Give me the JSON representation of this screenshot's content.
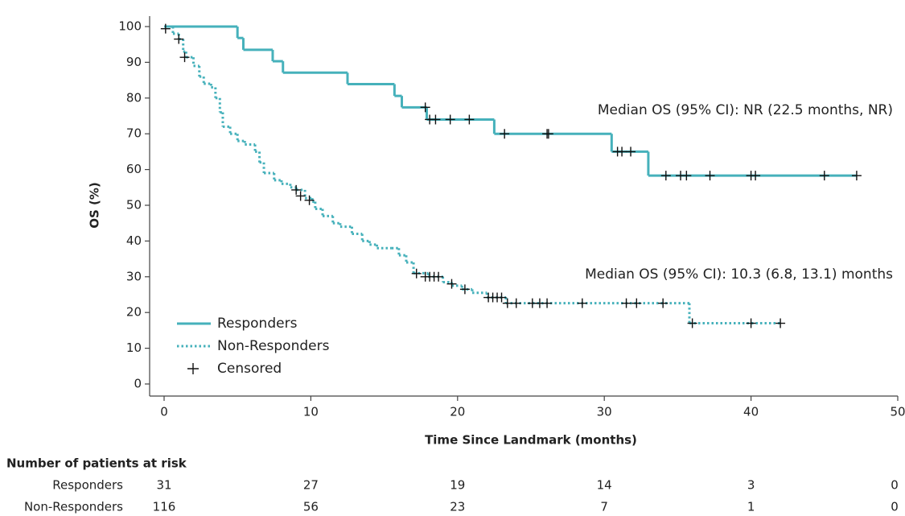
{
  "chart_data": {
    "type": "km",
    "y_label": "OS (%)",
    "x_label": "Time Since Landmark (months)",
    "xlim": [
      0,
      50
    ],
    "xticks": [
      0,
      10,
      20,
      30,
      40,
      50
    ],
    "ylim": [
      0,
      100
    ],
    "yticks": [
      0,
      10,
      20,
      30,
      40,
      50,
      60,
      70,
      80,
      90,
      100
    ],
    "censor_label": "Censored",
    "series": [
      {
        "name": "Responders",
        "color": "#46b1bb",
        "dashed": false,
        "x": [
          0,
          5.0,
          5.4,
          7.4,
          8.1,
          12.5,
          15.7,
          16.2,
          17.9,
          22.5,
          30.5,
          33.0,
          47.2
        ],
        "values": [
          100,
          96.8,
          93.5,
          90.3,
          87.1,
          83.9,
          80.6,
          77.4,
          74.0,
          70.0,
          65.0,
          58.3,
          58.3
        ],
        "censor_x": [
          17.8,
          18.1,
          18.5,
          19.5,
          20.8,
          23.2,
          26.1,
          26.2,
          30.9,
          31.2,
          31.8,
          34.2,
          35.2,
          35.6,
          37.2,
          40.0,
          40.3,
          45.0,
          47.2
        ],
        "censor_y": [
          77.4,
          74,
          74,
          74,
          74,
          70,
          70,
          70,
          65,
          65,
          65,
          58.3,
          58.3,
          58.3,
          58.3,
          58.3,
          58.3,
          58.3,
          58.3
        ],
        "annotation": "Median OS (95% CI): NR (22.5 months, NR)",
        "at_risk": [
          31,
          27,
          19,
          14,
          3,
          0
        ]
      },
      {
        "name": "Non-Responders",
        "color": "#46b1bb",
        "dashed": true,
        "x": [
          0,
          0.6,
          1.0,
          1.3,
          1.5,
          2.0,
          2.4,
          2.7,
          3.2,
          3.5,
          3.8,
          4.0,
          4.5,
          5.0,
          5.5,
          6.2,
          6.5,
          6.8,
          7.5,
          8.0,
          8.6,
          9.0,
          9.6,
          10.1,
          10.3,
          10.8,
          11.5,
          12.0,
          12.8,
          13.5,
          14.0,
          14.5,
          15.5,
          16.0,
          16.5,
          17.0,
          18.0,
          19.0,
          19.6,
          20.3,
          21.0,
          22.0,
          23.3,
          35.8,
          42.0
        ],
        "values": [
          100,
          98,
          96.5,
          93,
          91.4,
          89,
          86,
          84,
          83,
          80,
          76,
          72,
          70,
          68,
          67,
          65,
          62,
          59,
          57,
          56,
          55,
          54.3,
          52,
          51,
          49,
          47,
          45,
          44,
          42,
          40,
          39,
          38,
          38,
          36,
          34,
          31,
          30,
          28.5,
          27.5,
          26.5,
          25.5,
          24.2,
          22.6,
          17,
          17
        ],
        "censor_x": [
          0.1,
          1.0,
          1.4,
          9.0,
          9.3,
          9.9,
          17.2,
          17.8,
          18.1,
          18.4,
          18.7,
          19.6,
          20.5,
          22.1,
          22.4,
          22.7,
          23.0,
          23.4,
          24.0,
          25.1,
          25.6,
          26.1,
          28.5,
          31.5,
          32.2,
          34.0,
          36.0,
          40.0,
          42.0
        ],
        "censor_y": [
          99.4,
          96.5,
          91.4,
          54.3,
          52.6,
          51.4,
          30.9,
          30,
          30,
          30,
          30,
          28,
          26.5,
          24.2,
          24.2,
          24.2,
          24.2,
          22.6,
          22.6,
          22.6,
          22.6,
          22.6,
          22.6,
          22.6,
          22.6,
          22.6,
          17,
          17,
          17
        ],
        "annotation": "Median OS (95% CI): 10.3 (6.8, 13.1) months",
        "at_risk": [
          116,
          56,
          23,
          7,
          1,
          0
        ]
      }
    ],
    "at_risk_title": "Number of patients at risk"
  }
}
